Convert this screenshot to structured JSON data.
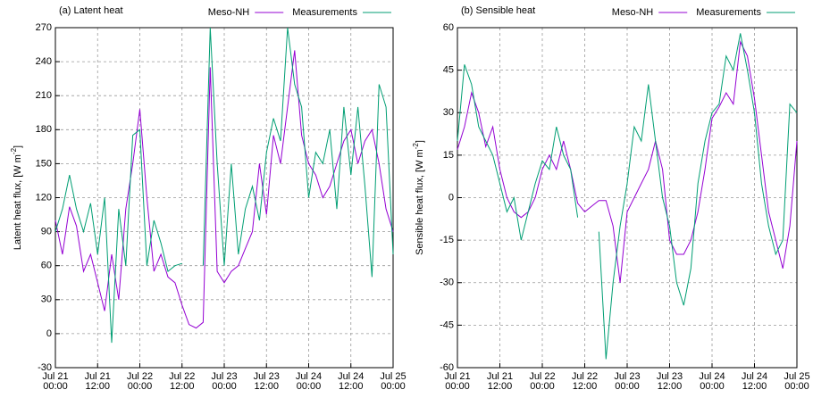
{
  "chart_data": [
    {
      "type": "line",
      "title": "(a) Latent heat",
      "ylabel_parts": [
        "Latent heat flux, [W m",
        "-2",
        "]"
      ],
      "x": [
        0,
        2,
        4,
        6,
        8,
        10,
        12,
        14,
        16,
        18,
        20,
        22,
        24,
        26,
        28,
        30,
        32,
        34,
        36,
        38,
        40,
        42,
        44,
        46,
        48,
        50,
        52,
        54,
        56,
        58,
        60,
        62,
        64,
        66,
        68,
        70,
        72,
        74,
        76,
        78,
        80,
        82,
        84,
        86,
        88,
        90,
        92,
        94,
        96
      ],
      "series": [
        {
          "name": "Meso-NH",
          "color": "#9400d3",
          "values": [
            100,
            70,
            112,
            95,
            55,
            70,
            45,
            20,
            70,
            30,
            110,
            150,
            198,
            120,
            55,
            70,
            50,
            45,
            25,
            8,
            5,
            10,
            235,
            55,
            45,
            55,
            60,
            75,
            90,
            150,
            105,
            175,
            150,
            200,
            250,
            175,
            150,
            140,
            120,
            130,
            150,
            170,
            180,
            150,
            170,
            180,
            150,
            110,
            90
          ]
        },
        {
          "name": "Measurements",
          "color": "#009e73",
          "values": [
            90,
            110,
            140,
            110,
            90,
            115,
            70,
            120,
            -8,
            110,
            60,
            175,
            180,
            60,
            100,
            80,
            55,
            60,
            62,
            null,
            null,
            60,
            270,
            150,
            60,
            150,
            70,
            110,
            130,
            100,
            160,
            190,
            170,
            270,
            220,
            200,
            120,
            160,
            150,
            180,
            110,
            200,
            140,
            200,
            130,
            50,
            220,
            200,
            70
          ]
        }
      ],
      "ylim": [
        -30,
        270
      ],
      "yticks": [
        -30,
        0,
        30,
        60,
        90,
        120,
        150,
        180,
        210,
        240,
        270
      ],
      "xlim": [
        0,
        96
      ],
      "xticks": [
        {
          "value": 0,
          "label": "Jul 21\n00:00"
        },
        {
          "value": 12,
          "label": "Jul 21\n12:00"
        },
        {
          "value": 24,
          "label": "Jul 22\n00:00"
        },
        {
          "value": 36,
          "label": "Jul 22\n12:00"
        },
        {
          "value": 48,
          "label": "Jul 23\n00:00"
        },
        {
          "value": 60,
          "label": "Jul 23\n12:00"
        },
        {
          "value": 72,
          "label": "Jul 24\n00:00"
        },
        {
          "value": 84,
          "label": "Jul 24\n12:00"
        },
        {
          "value": 96,
          "label": "Jul 25\n00:00"
        }
      ],
      "grid": true,
      "legend": "top-right"
    },
    {
      "type": "line",
      "title": "(b) Sensible heat",
      "ylabel_parts": [
        "Sensible heat flux, [W m",
        "-2",
        "]"
      ],
      "x": [
        0,
        2,
        4,
        6,
        8,
        10,
        12,
        14,
        16,
        18,
        20,
        22,
        24,
        26,
        28,
        30,
        32,
        34,
        36,
        38,
        40,
        42,
        44,
        46,
        48,
        50,
        52,
        54,
        56,
        58,
        60,
        62,
        64,
        66,
        68,
        70,
        72,
        74,
        76,
        78,
        80,
        82,
        84,
        86,
        88,
        90,
        92,
        94,
        96
      ],
      "series": [
        {
          "name": "Meso-NH",
          "color": "#9400d3",
          "values": [
            17,
            25,
            37,
            30,
            18,
            25,
            10,
            0,
            -5,
            -7,
            -5,
            0,
            10,
            15,
            10,
            20,
            10,
            -2,
            -5,
            -3,
            -1,
            -1,
            -10,
            -30,
            -5,
            0,
            5,
            10,
            20,
            10,
            -15,
            -20,
            -20,
            -15,
            -5,
            10,
            28,
            32,
            37,
            33,
            55,
            50,
            35,
            15,
            -5,
            -15,
            -25,
            -10,
            20
          ]
        },
        {
          "name": "Measurements",
          "color": "#009e73",
          "values": [
            20,
            47,
            40,
            25,
            20,
            15,
            5,
            -5,
            0,
            -15,
            -5,
            5,
            13,
            10,
            25,
            15,
            10,
            -7,
            null,
            null,
            -12,
            -57,
            -30,
            -10,
            5,
            25,
            20,
            40,
            20,
            0,
            -10,
            -30,
            -38,
            -25,
            5,
            20,
            30,
            33,
            50,
            45,
            58,
            45,
            30,
            5,
            -10,
            -20,
            -15,
            33,
            30
          ]
        }
      ],
      "ylim": [
        -60,
        60
      ],
      "yticks": [
        -60,
        -45,
        -30,
        -15,
        0,
        15,
        30,
        45,
        60
      ],
      "xlim": [
        0,
        96
      ],
      "xticks": [
        {
          "value": 0,
          "label": "Jul 21\n00:00"
        },
        {
          "value": 12,
          "label": "Jul 21\n12:00"
        },
        {
          "value": 24,
          "label": "Jul 22\n00:00"
        },
        {
          "value": 36,
          "label": "Jul 22\n12:00"
        },
        {
          "value": 48,
          "label": "Jul 23\n00:00"
        },
        {
          "value": 60,
          "label": "Jul 23\n12:00"
        },
        {
          "value": 72,
          "label": "Jul 24\n00:00"
        },
        {
          "value": 84,
          "label": "Jul 24\n12:00"
        },
        {
          "value": 96,
          "label": "Jul 25\n00:00"
        }
      ],
      "grid": true,
      "legend": "top-right"
    }
  ]
}
